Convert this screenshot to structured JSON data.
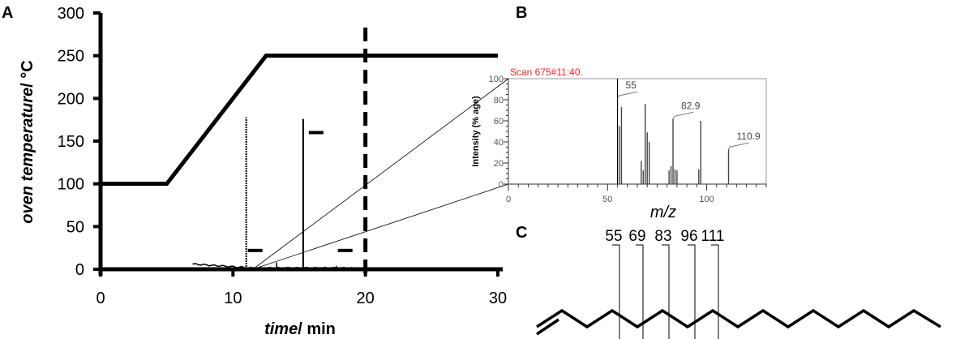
{
  "panels": {
    "a": "A",
    "b": "B",
    "c": "C"
  },
  "chart_data": [
    {
      "type": "line",
      "panel": "A",
      "xlabel_italic": "time",
      "xlabel_rest": "/ min",
      "ylabel_italic": "oven temperature",
      "ylabel_rest": "/ °C",
      "xlim": [
        0,
        30
      ],
      "ylim": [
        0,
        300
      ],
      "xticks": [
        0,
        10,
        20,
        30
      ],
      "yticks": [
        0,
        50,
        100,
        150,
        200,
        250,
        300
      ],
      "series": [
        {
          "name": "oven temperature",
          "x": [
            0,
            5,
            12.5,
            30
          ],
          "y": [
            100,
            100,
            250,
            250
          ]
        }
      ],
      "chromatogram_peaks": [
        {
          "time": 11.0,
          "height": 178
        },
        {
          "time": 13.3,
          "height": 8
        },
        {
          "time": 15.3,
          "height": 176
        },
        {
          "time": 17.8,
          "height": 4
        }
      ],
      "marker_time": 20
    },
    {
      "type": "bar",
      "panel": "B",
      "title": "Scan 675#11:40.",
      "xlabel": "m/z",
      "ylabel": "Intensity (% age)",
      "xlim": [
        0,
        130
      ],
      "ylim": [
        0,
        100
      ],
      "xticks": [
        0,
        50,
        100
      ],
      "yticks": [
        0,
        20,
        40,
        60,
        80,
        100
      ],
      "x": [
        55,
        56,
        57,
        67,
        68,
        69,
        70,
        71,
        81,
        82,
        83,
        84,
        85,
        96,
        97,
        111
      ],
      "values": [
        100,
        55,
        73,
        22,
        13,
        76,
        49,
        40,
        13,
        17,
        62,
        14,
        13,
        14,
        60,
        33
      ],
      "peak_labels": [
        {
          "mz": 55,
          "text": "55"
        },
        {
          "mz": 83,
          "text": "82.9"
        },
        {
          "mz": 111,
          "text": "110.9"
        }
      ]
    }
  ],
  "structure": {
    "fragments": [
      "55",
      "69",
      "83",
      "96",
      "111"
    ]
  }
}
